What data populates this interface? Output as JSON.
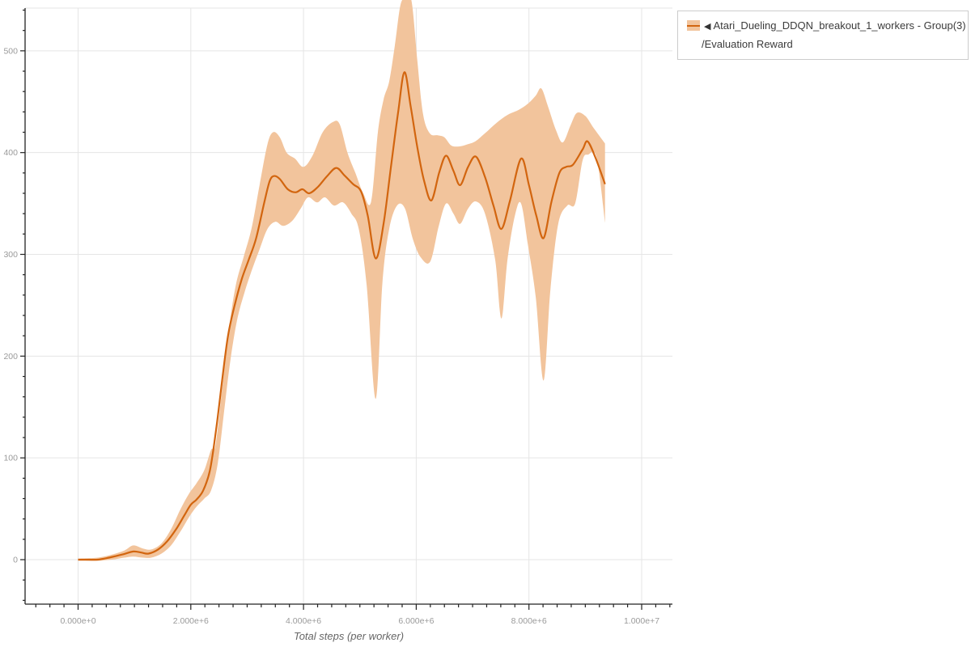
{
  "figure": {
    "background": "#ffffff"
  },
  "legend": {
    "marker": "◀",
    "series_label": "Atari_Dueling_DDQN_breakout_1_workers - Group(3)",
    "metric_label": "/Evaluation Reward"
  },
  "chart_data": {
    "type": "line",
    "title": "",
    "xlabel": "Total steps (per worker)",
    "ylabel": "",
    "grid": true,
    "legend_position": "top-right",
    "x_unit": "steps (values below in millions)",
    "xlim_millions": [
      -0.94,
      10.54
    ],
    "ylim": [
      -43,
      543
    ],
    "x_ticks": [
      {
        "v": 0,
        "label": "0.000e+0"
      },
      {
        "v": 2,
        "label": "2.000e+6"
      },
      {
        "v": 4,
        "label": "4.000e+6"
      },
      {
        "v": 6,
        "label": "6.000e+6"
      },
      {
        "v": 8,
        "label": "8.000e+6"
      },
      {
        "v": 10,
        "label": "1.000e+7"
      }
    ],
    "y_ticks": [
      {
        "v": 0,
        "label": "0"
      },
      {
        "v": 100,
        "label": "100"
      },
      {
        "v": 200,
        "label": "200"
      },
      {
        "v": 300,
        "label": "300"
      },
      {
        "v": 400,
        "label": "400"
      },
      {
        "v": 500,
        "label": "500"
      }
    ],
    "x_minor_step_millions": 0.25,
    "y_minor_step": 20,
    "colors": {
      "grid": "#e5e5e5",
      "axis": "#222222",
      "tick_label": "#9a9a9a",
      "axis_title": "#666666"
    },
    "series": [
      {
        "name": "Atari_Dueling_DDQN_breakout_1_workers - Group(3)/Evaluation Reward",
        "color": "#d2650f",
        "band_color": "#f2c49c",
        "mean": [
          [
            0.0,
            0
          ],
          [
            0.18,
            0
          ],
          [
            0.35,
            0
          ],
          [
            0.55,
            2
          ],
          [
            0.78,
            5
          ],
          [
            0.98,
            8
          ],
          [
            1.12,
            7
          ],
          [
            1.25,
            6
          ],
          [
            1.42,
            10
          ],
          [
            1.58,
            18
          ],
          [
            1.74,
            30
          ],
          [
            1.88,
            43
          ],
          [
            2.0,
            54
          ],
          [
            2.1,
            59
          ],
          [
            2.22,
            68
          ],
          [
            2.34,
            88
          ],
          [
            2.45,
            128
          ],
          [
            2.56,
            178
          ],
          [
            2.66,
            220
          ],
          [
            2.77,
            248
          ],
          [
            2.9,
            275
          ],
          [
            3.03,
            295
          ],
          [
            3.16,
            316
          ],
          [
            3.3,
            350
          ],
          [
            3.4,
            372
          ],
          [
            3.48,
            377
          ],
          [
            3.58,
            374
          ],
          [
            3.72,
            364
          ],
          [
            3.86,
            361
          ],
          [
            3.98,
            364
          ],
          [
            4.1,
            360
          ],
          [
            4.25,
            366
          ],
          [
            4.42,
            377
          ],
          [
            4.58,
            385
          ],
          [
            4.72,
            378
          ],
          [
            4.88,
            369
          ],
          [
            5.02,
            362
          ],
          [
            5.14,
            338
          ],
          [
            5.28,
            296
          ],
          [
            5.42,
            330
          ],
          [
            5.56,
            390
          ],
          [
            5.68,
            440
          ],
          [
            5.79,
            479
          ],
          [
            5.9,
            446
          ],
          [
            6.02,
            405
          ],
          [
            6.14,
            372
          ],
          [
            6.27,
            353
          ],
          [
            6.41,
            381
          ],
          [
            6.53,
            397
          ],
          [
            6.66,
            382
          ],
          [
            6.78,
            368
          ],
          [
            6.92,
            386
          ],
          [
            7.06,
            396
          ],
          [
            7.22,
            376
          ],
          [
            7.37,
            348
          ],
          [
            7.51,
            325
          ],
          [
            7.66,
            352
          ],
          [
            7.86,
            394
          ],
          [
            8.0,
            368
          ],
          [
            8.13,
            338
          ],
          [
            8.26,
            316
          ],
          [
            8.4,
            352
          ],
          [
            8.54,
            380
          ],
          [
            8.66,
            386
          ],
          [
            8.78,
            388
          ],
          [
            8.95,
            403
          ],
          [
            9.04,
            411
          ],
          [
            9.18,
            395
          ],
          [
            9.35,
            369
          ]
        ],
        "band_lower": [
          [
            0.0,
            -1
          ],
          [
            0.35,
            -1
          ],
          [
            0.6,
            0
          ],
          [
            0.82,
            2
          ],
          [
            0.98,
            3
          ],
          [
            1.15,
            2
          ],
          [
            1.3,
            2
          ],
          [
            1.48,
            6
          ],
          [
            1.65,
            14
          ],
          [
            1.82,
            28
          ],
          [
            1.97,
            42
          ],
          [
            2.1,
            52
          ],
          [
            2.24,
            60
          ],
          [
            2.36,
            68
          ],
          [
            2.48,
            95
          ],
          [
            2.6,
            150
          ],
          [
            2.7,
            195
          ],
          [
            2.82,
            235
          ],
          [
            2.95,
            262
          ],
          [
            3.08,
            284
          ],
          [
            3.22,
            305
          ],
          [
            3.36,
            325
          ],
          [
            3.5,
            332
          ],
          [
            3.64,
            328
          ],
          [
            3.8,
            333
          ],
          [
            3.95,
            345
          ],
          [
            4.08,
            356
          ],
          [
            4.24,
            351
          ],
          [
            4.38,
            356
          ],
          [
            4.54,
            348
          ],
          [
            4.7,
            351
          ],
          [
            4.85,
            340
          ],
          [
            4.98,
            325
          ],
          [
            5.12,
            270
          ],
          [
            5.28,
            158
          ],
          [
            5.4,
            272
          ],
          [
            5.52,
            325
          ],
          [
            5.66,
            348
          ],
          [
            5.8,
            345
          ],
          [
            5.94,
            315
          ],
          [
            6.08,
            297
          ],
          [
            6.25,
            293
          ],
          [
            6.4,
            328
          ],
          [
            6.53,
            350
          ],
          [
            6.66,
            340
          ],
          [
            6.78,
            330
          ],
          [
            6.92,
            345
          ],
          [
            7.06,
            352
          ],
          [
            7.22,
            340
          ],
          [
            7.4,
            295
          ],
          [
            7.51,
            237
          ],
          [
            7.62,
            295
          ],
          [
            7.75,
            338
          ],
          [
            7.86,
            350
          ],
          [
            7.98,
            310
          ],
          [
            8.12,
            258
          ],
          [
            8.26,
            176
          ],
          [
            8.38,
            265
          ],
          [
            8.52,
            330
          ],
          [
            8.68,
            348
          ],
          [
            8.82,
            350
          ],
          [
            8.95,
            392
          ],
          [
            9.05,
            398
          ],
          [
            9.2,
            395
          ],
          [
            9.35,
            331
          ]
        ],
        "band_upper": [
          [
            0.0,
            1
          ],
          [
            0.35,
            2
          ],
          [
            0.6,
            5
          ],
          [
            0.82,
            9
          ],
          [
            0.98,
            14
          ],
          [
            1.15,
            11
          ],
          [
            1.3,
            10
          ],
          [
            1.48,
            16
          ],
          [
            1.65,
            30
          ],
          [
            1.82,
            50
          ],
          [
            1.97,
            65
          ],
          [
            2.1,
            75
          ],
          [
            2.24,
            88
          ],
          [
            2.36,
            108
          ],
          [
            2.44,
            113
          ],
          [
            2.56,
            170
          ],
          [
            2.68,
            228
          ],
          [
            2.8,
            270
          ],
          [
            2.94,
            298
          ],
          [
            3.08,
            326
          ],
          [
            3.22,
            368
          ],
          [
            3.36,
            408
          ],
          [
            3.46,
            420
          ],
          [
            3.58,
            415
          ],
          [
            3.7,
            400
          ],
          [
            3.85,
            394
          ],
          [
            4.0,
            386
          ],
          [
            4.16,
            397
          ],
          [
            4.34,
            420
          ],
          [
            4.52,
            430
          ],
          [
            4.64,
            428
          ],
          [
            4.78,
            400
          ],
          [
            4.92,
            380
          ],
          [
            5.06,
            360
          ],
          [
            5.2,
            352
          ],
          [
            5.32,
            420
          ],
          [
            5.42,
            452
          ],
          [
            5.52,
            470
          ],
          [
            5.62,
            505
          ],
          [
            5.72,
            545
          ],
          [
            5.82,
            552
          ],
          [
            5.92,
            548
          ],
          [
            6.02,
            490
          ],
          [
            6.12,
            438
          ],
          [
            6.24,
            419
          ],
          [
            6.38,
            417
          ],
          [
            6.5,
            415
          ],
          [
            6.62,
            407
          ],
          [
            6.76,
            406
          ],
          [
            6.9,
            408
          ],
          [
            7.05,
            411
          ],
          [
            7.22,
            419
          ],
          [
            7.42,
            429
          ],
          [
            7.62,
            437
          ],
          [
            7.82,
            442
          ],
          [
            7.98,
            448
          ],
          [
            8.12,
            456
          ],
          [
            8.22,
            463
          ],
          [
            8.34,
            445
          ],
          [
            8.48,
            422
          ],
          [
            8.6,
            410
          ],
          [
            8.74,
            427
          ],
          [
            8.85,
            439
          ],
          [
            9.0,
            436
          ],
          [
            9.15,
            424
          ],
          [
            9.35,
            409
          ]
        ]
      }
    ]
  }
}
